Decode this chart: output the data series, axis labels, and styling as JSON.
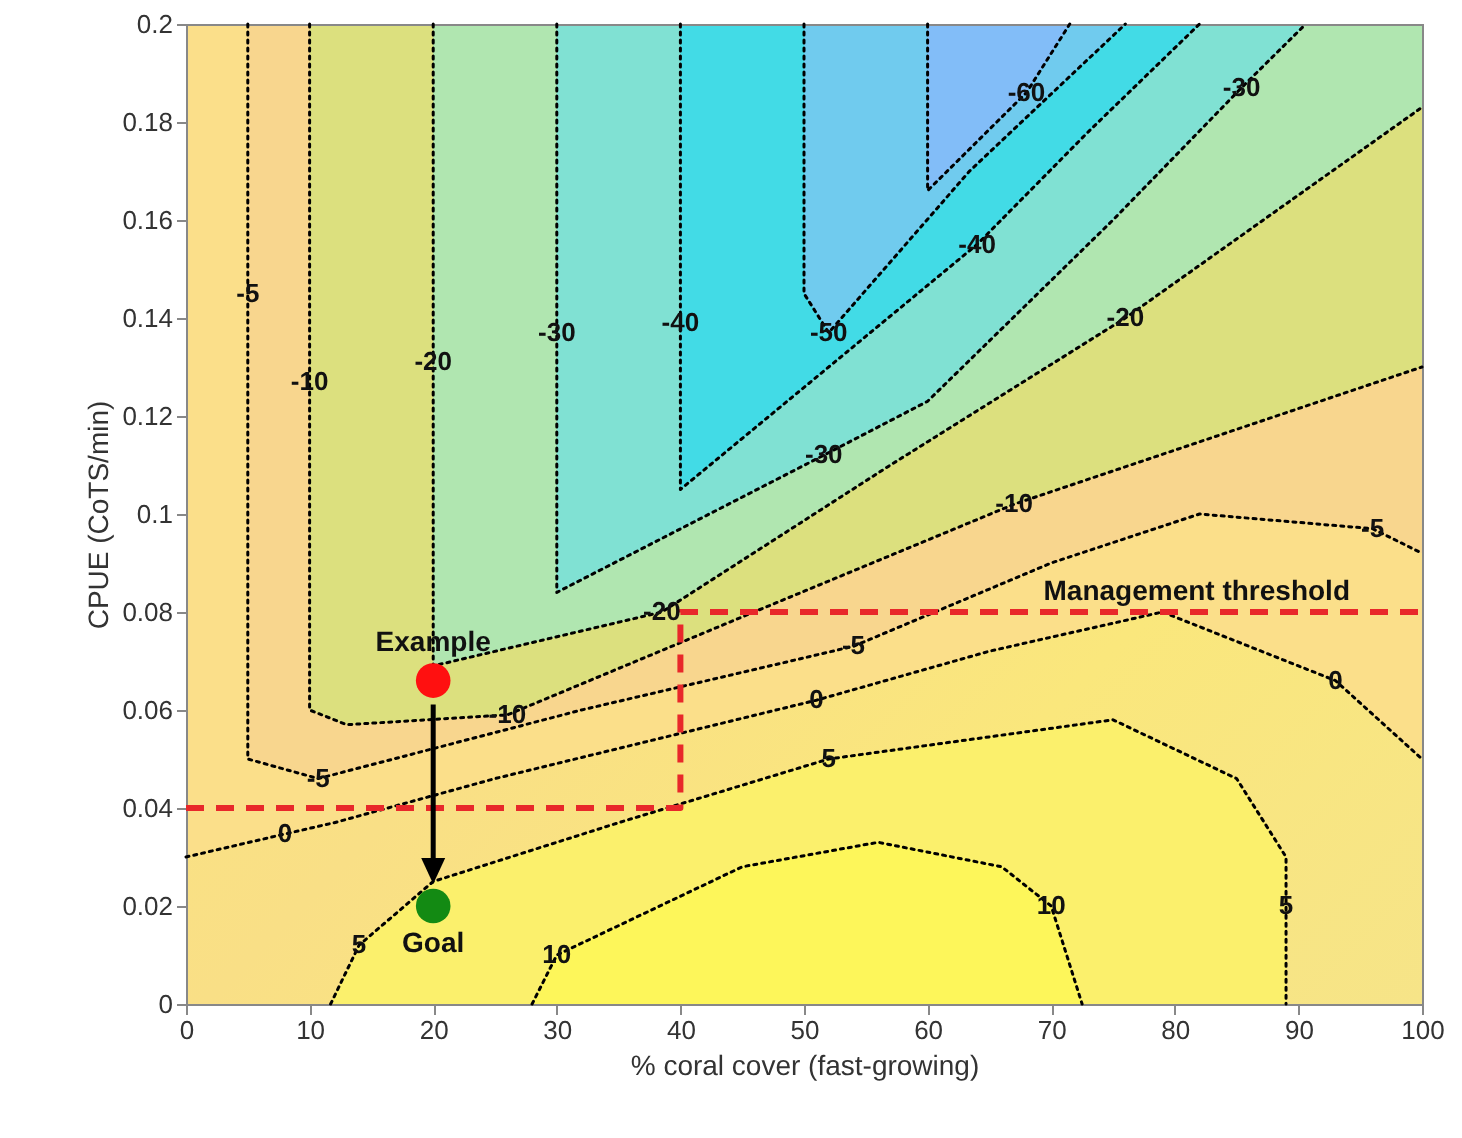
{
  "chart_data": {
    "type": "scatter",
    "xlabel": "% coral cover (fast-growing)",
    "ylabel": "CPUE (CoTS/min)",
    "xlim": [
      0,
      100
    ],
    "xticks": [
      0,
      10,
      20,
      30,
      40,
      50,
      60,
      70,
      80,
      90,
      100
    ],
    "ylim": [
      0,
      0.2
    ],
    "yticks": [
      0,
      0.02,
      0.04,
      0.06,
      0.08,
      0.1,
      0.12,
      0.14,
      0.16,
      0.18,
      0.2
    ],
    "grid": false,
    "series": [
      {
        "type": "line",
        "color": "#000000",
        "line_style": "dotted",
        "x": [
          60,
          60,
          68,
          71.5
        ],
        "values": [
          0.2,
          0.166,
          0.186,
          0.2
        ]
      },
      {
        "type": "line",
        "color": "#000000",
        "line_style": "dotted",
        "x": [
          50,
          50,
          52,
          63.4,
          76
        ],
        "values": [
          0.2,
          0.145,
          0.137,
          0.17,
          0.2
        ]
      },
      {
        "type": "line",
        "color": "#000000",
        "line_style": "dotted",
        "x": [
          40,
          40,
          40,
          64,
          73,
          82
        ],
        "values": [
          0.2,
          0.139,
          0.105,
          0.155,
          0.178,
          0.2
        ]
      },
      {
        "type": "line",
        "color": "#000000",
        "line_style": "dotted",
        "x": [
          30,
          30,
          30,
          51.6,
          60,
          75,
          85.4,
          90.6
        ],
        "values": [
          0.2,
          0.137,
          0.084,
          0.112,
          0.123,
          0.16,
          0.187,
          0.2
        ]
      },
      {
        "type": "line",
        "color": "#000000",
        "line_style": "dotted",
        "x": [
          20,
          20,
          20,
          38.5,
          57,
          76,
          100
        ],
        "values": [
          0.2,
          0.131,
          0.069,
          0.08,
          0.11,
          0.14,
          0.183
        ]
      },
      {
        "type": "line",
        "color": "#000000",
        "line_style": "dotted",
        "x": [
          10,
          10,
          10,
          13,
          26,
          45,
          67,
          100
        ],
        "values": [
          0.2,
          0.127,
          0.06,
          0.057,
          0.059,
          0.079,
          0.102,
          0.13
        ]
      },
      {
        "type": "line",
        "color": "#000000",
        "line_style": "dotted",
        "x": [
          5,
          5,
          5,
          10.7,
          32,
          54,
          70,
          82,
          96,
          100
        ],
        "values": [
          0.2,
          0.145,
          0.05,
          0.046,
          0.06,
          0.073,
          0.09,
          0.1,
          0.097,
          0.092
        ]
      },
      {
        "type": "line",
        "color": "#000000",
        "line_style": "dotted",
        "x": [
          0,
          8,
          12,
          25,
          38,
          51,
          65,
          79,
          93,
          100
        ],
        "values": [
          0.03,
          0.0347,
          0.037,
          0.046,
          0.054,
          0.062,
          0.072,
          0.08,
          0.066,
          0.05
        ]
      },
      {
        "type": "line",
        "color": "#000000",
        "line_style": "dotted",
        "x": [
          11.7,
          14,
          20,
          35,
          52,
          75,
          85,
          89,
          89,
          89
        ],
        "values": [
          0,
          0.012,
          0.025,
          0.037,
          0.05,
          0.058,
          0.046,
          0.03,
          0.02,
          0
        ]
      },
      {
        "type": "line",
        "color": "#000000",
        "line_style": "dotted",
        "x": [
          28,
          30,
          45,
          56,
          66,
          70,
          72.5
        ],
        "values": [
          0,
          0.01,
          0.028,
          0.033,
          0.028,
          0.02,
          0
        ]
      },
      {
        "type": "line",
        "name": "Management threshold",
        "color": "#e8282a",
        "line_style": "dashed",
        "x": [
          0,
          40,
          40,
          100
        ],
        "values": [
          0.04,
          0.04,
          0.08,
          0.08
        ]
      },
      {
        "type": "scatter",
        "name": "Example",
        "color": "#ff1010",
        "marker": "circle",
        "x": [
          20
        ],
        "values": [
          0.066
        ]
      },
      {
        "type": "scatter",
        "name": "Goal",
        "color": "#138a13",
        "marker": "circle",
        "x": [
          20
        ],
        "values": [
          0.02
        ]
      }
    ],
    "annotations": [
      {
        "text": "-60",
        "x": 68,
        "y": 0.186
      },
      {
        "text": "-50",
        "x": 52,
        "y": 0.137
      },
      {
        "text": "-40",
        "x": 40,
        "y": 0.139
      },
      {
        "text": "-40",
        "x": 64,
        "y": 0.155
      },
      {
        "text": "-30",
        "x": 30,
        "y": 0.137
      },
      {
        "text": "-30",
        "x": 51.6,
        "y": 0.112
      },
      {
        "text": "-30",
        "x": 85.4,
        "y": 0.187
      },
      {
        "text": "-20",
        "x": 20,
        "y": 0.131
      },
      {
        "text": "-20",
        "x": 38.5,
        "y": 0.08
      },
      {
        "text": "-20",
        "x": 76,
        "y": 0.14
      },
      {
        "text": "-10",
        "x": 10,
        "y": 0.127
      },
      {
        "text": "-10",
        "x": 26,
        "y": 0.059
      },
      {
        "text": "-10",
        "x": 67,
        "y": 0.102
      },
      {
        "text": "-5",
        "x": 5,
        "y": 0.145
      },
      {
        "text": "-5",
        "x": 10.7,
        "y": 0.046
      },
      {
        "text": "-5",
        "x": 54,
        "y": 0.073
      },
      {
        "text": "-5",
        "x": 96,
        "y": 0.097
      },
      {
        "text": "0",
        "x": 8,
        "y": 0.0347
      },
      {
        "text": "0",
        "x": 51,
        "y": 0.062
      },
      {
        "text": "0",
        "x": 93,
        "y": 0.066
      },
      {
        "text": "5",
        "x": 14,
        "y": 0.012
      },
      {
        "text": "5",
        "x": 52,
        "y": 0.05
      },
      {
        "text": "5",
        "x": 89,
        "y": 0.02
      },
      {
        "text": "10",
        "x": 30,
        "y": 0.01
      },
      {
        "text": "10",
        "x": 70,
        "y": 0.02
      }
    ]
  }
}
